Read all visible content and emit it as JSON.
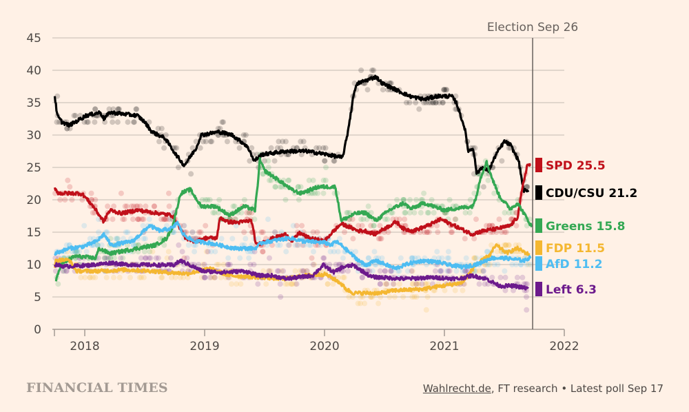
{
  "chart_data": {
    "type": "line",
    "title": "",
    "xlabel": "",
    "ylabel": "",
    "xlim": [
      2017.747,
      2022.0
    ],
    "ylim": [
      0,
      45
    ],
    "grid": true,
    "y_ticks": [
      "0",
      "5",
      "10",
      "15",
      "20",
      "25",
      "30",
      "35",
      "40",
      "45"
    ],
    "y_tick_values": [
      0,
      5,
      10,
      15,
      20,
      25,
      30,
      35,
      40,
      45
    ],
    "x_ticks": [
      "2018",
      "2019",
      "2020",
      "2021",
      "2022"
    ],
    "x_tick_values": [
      2018,
      2019,
      2020,
      2021,
      2022
    ],
    "annotation": {
      "label": "Election Sep 26",
      "x": 2021.736
    },
    "legend_placement": "right (direct labels)",
    "series": [
      {
        "name": "CDU/CSU",
        "label": "CDU/CSU 21.2",
        "latest": 21.2,
        "color": "#000000",
        "x": [
          2017.75,
          2017.77,
          2017.81,
          2017.87,
          2017.92,
          2018.01,
          2018.13,
          2018.16,
          2018.21,
          2018.44,
          2018.5,
          2018.56,
          2018.67,
          2018.76,
          2018.83,
          2018.93,
          2018.97,
          2019.12,
          2019.23,
          2019.34,
          2019.38,
          2019.41,
          2019.48,
          2019.68,
          2019.85,
          2020.02,
          2020.15,
          2020.19,
          2020.25,
          2020.28,
          2020.43,
          2020.48,
          2020.71,
          2020.83,
          2020.94,
          2021.06,
          2021.1,
          2021.17,
          2021.2,
          2021.24,
          2021.27,
          2021.31,
          2021.37,
          2021.43,
          2021.5,
          2021.55,
          2021.62,
          2021.66,
          2021.7
        ],
        "y": [
          36,
          33,
          32,
          31.5,
          32,
          33,
          33.5,
          32.5,
          33.5,
          33,
          32,
          30.5,
          29.5,
          27,
          25.3,
          28,
          30,
          30.5,
          30,
          28.5,
          27.5,
          26,
          27,
          27.5,
          27.5,
          27,
          26.5,
          30,
          37,
          38,
          39,
          38,
          36,
          35.5,
          36,
          36,
          35,
          31,
          27.5,
          28,
          24,
          25,
          24.5,
          27,
          29,
          28.5,
          26,
          21.5,
          21.2
        ]
      },
      {
        "name": "SPD",
        "label": "SPD 25.5",
        "latest": 25.5,
        "color": "#c0101a",
        "x": [
          2017.75,
          2017.78,
          2017.96,
          2017.99,
          2018.07,
          2018.16,
          2018.19,
          2018.22,
          2018.3,
          2018.44,
          2018.62,
          2018.73,
          2018.76,
          2018.85,
          2018.93,
          2019.01,
          2019.1,
          2019.13,
          2019.19,
          2019.28,
          2019.39,
          2019.43,
          2019.56,
          2019.68,
          2019.73,
          2019.79,
          2019.87,
          2020.0,
          2020.06,
          2020.14,
          2020.22,
          2020.28,
          2020.34,
          2020.42,
          2020.6,
          2020.66,
          2020.74,
          2020.86,
          2020.97,
          2021.23,
          2021.32,
          2021.43,
          2021.55,
          2021.61,
          2021.63,
          2021.66,
          2021.69,
          2021.72
        ],
        "y": [
          21.9,
          21,
          21,
          20.7,
          19,
          16.6,
          17.9,
          18.4,
          17.9,
          18.4,
          17.9,
          17.6,
          16.8,
          13.8,
          13.6,
          14.1,
          14.1,
          17.3,
          16.6,
          16.5,
          16.8,
          13,
          14,
          14.7,
          13.6,
          14.9,
          14.1,
          13.6,
          14.9,
          16.3,
          15.7,
          15.2,
          15.2,
          14.7,
          16.6,
          15.5,
          15.2,
          16,
          17,
          14.7,
          15.2,
          15.5,
          16,
          17.3,
          19.5,
          22.7,
          25.3,
          25.5
        ]
      },
      {
        "name": "Greens",
        "label": "Greens 15.8",
        "latest": 15.8,
        "color": "#34a853",
        "x": [
          2017.76,
          2017.8,
          2017.92,
          2018.09,
          2018.12,
          2018.21,
          2018.44,
          2018.59,
          2018.68,
          2018.73,
          2018.8,
          2018.88,
          2018.97,
          2019.09,
          2019.21,
          2019.33,
          2019.42,
          2019.45,
          2019.46,
          2019.5,
          2019.62,
          2019.73,
          2019.8,
          2019.95,
          2020.09,
          2020.14,
          2020.26,
          2020.34,
          2020.43,
          2020.54,
          2020.66,
          2020.72,
          2020.83,
          2021.0,
          2021.23,
          2021.26,
          2021.29,
          2021.35,
          2021.4,
          2021.46,
          2021.55,
          2021.61,
          2021.66,
          2021.73
        ],
        "y": [
          7.4,
          10,
          11.3,
          11,
          12.5,
          11.7,
          12.5,
          13,
          14,
          15.7,
          21,
          21.6,
          19,
          19,
          17.6,
          19,
          18.4,
          23.7,
          26.2,
          24.5,
          23,
          21.5,
          21,
          22,
          22,
          16.8,
          17.9,
          18,
          16.8,
          18.4,
          19.5,
          18.6,
          19.5,
          18.4,
          19,
          20,
          22.7,
          25.9,
          23.2,
          20.5,
          18.6,
          19.5,
          18,
          15.8
        ]
      },
      {
        "name": "FDP",
        "label": "FDP 11.5",
        "latest": 11.5,
        "color": "#f4b731",
        "x": [
          2017.75,
          2017.76,
          2017.87,
          2017.93,
          2018.13,
          2018.34,
          2018.56,
          2018.67,
          2018.86,
          2019.04,
          2019.21,
          2019.49,
          2019.67,
          2019.84,
          2020.01,
          2020.13,
          2020.18,
          2020.24,
          2020.32,
          2020.47,
          2020.58,
          2020.81,
          2020.98,
          2021.15,
          2021.26,
          2021.38,
          2021.43,
          2021.52,
          2021.61,
          2021.71
        ],
        "y": [
          9.5,
          10.7,
          10.7,
          9,
          9,
          9.2,
          9,
          8.8,
          8.6,
          9.4,
          8.3,
          8,
          7.8,
          8.3,
          8.5,
          7.2,
          6.2,
          5.6,
          5.6,
          5.6,
          6,
          6.2,
          6.7,
          7.2,
          9.9,
          11.5,
          13,
          11.8,
          12.5,
          11.5
        ]
      },
      {
        "name": "AfD",
        "label": "AfD 11.2",
        "latest": 11.2,
        "color": "#4ebdf2",
        "x": [
          2017.75,
          2017.87,
          2017.99,
          2018.1,
          2018.16,
          2018.22,
          2018.4,
          2018.54,
          2018.63,
          2018.74,
          2018.77,
          2018.82,
          2018.91,
          2019.02,
          2019.25,
          2019.42,
          2019.48,
          2019.71,
          2019.82,
          2020.0,
          2020.06,
          2020.09,
          2020.14,
          2020.26,
          2020.34,
          2020.43,
          2020.59,
          2020.71,
          2020.82,
          2020.94,
          2021.05,
          2021.16,
          2021.28,
          2021.39,
          2021.51,
          2021.67,
          2021.72
        ],
        "y": [
          11.7,
          12.5,
          12.8,
          13.6,
          14.7,
          13,
          13.6,
          16,
          15.2,
          15.7,
          16.6,
          14.7,
          13.6,
          13.4,
          12.5,
          12.5,
          13.4,
          14.1,
          13.6,
          13.4,
          13,
          13.6,
          13,
          11,
          9.9,
          10.6,
          9.4,
          10.2,
          10.6,
          10.4,
          9.9,
          9.6,
          10.1,
          11,
          11,
          10.6,
          11.2
        ]
      },
      {
        "name": "Left",
        "label": "Left 6.3",
        "latest": 6.3,
        "color": "#6c1a8c",
        "x": [
          2017.75,
          2017.84,
          2018.04,
          2018.24,
          2018.33,
          2018.74,
          2018.8,
          2018.98,
          2019.16,
          2019.33,
          2019.45,
          2019.56,
          2019.68,
          2019.9,
          2019.99,
          2020.08,
          2020.15,
          2020.24,
          2020.39,
          2020.66,
          2020.89,
          2021.12,
          2021.23,
          2021.35,
          2021.46,
          2021.58,
          2021.7
        ],
        "y": [
          10,
          9.7,
          9.9,
          10.3,
          10,
          9.9,
          10.6,
          9,
          8.8,
          9,
          8.3,
          8.3,
          7.8,
          8.3,
          9.9,
          8.8,
          9.6,
          9.9,
          8.1,
          7.8,
          8,
          7.8,
          8.3,
          7.8,
          6.7,
          6.7,
          6.3
        ]
      }
    ]
  },
  "footer": {
    "brand": "FINANCIAL TIMES",
    "source_link": "Wahlrecht.de",
    "source_rest": ", FT research • Latest poll Sep 17"
  }
}
